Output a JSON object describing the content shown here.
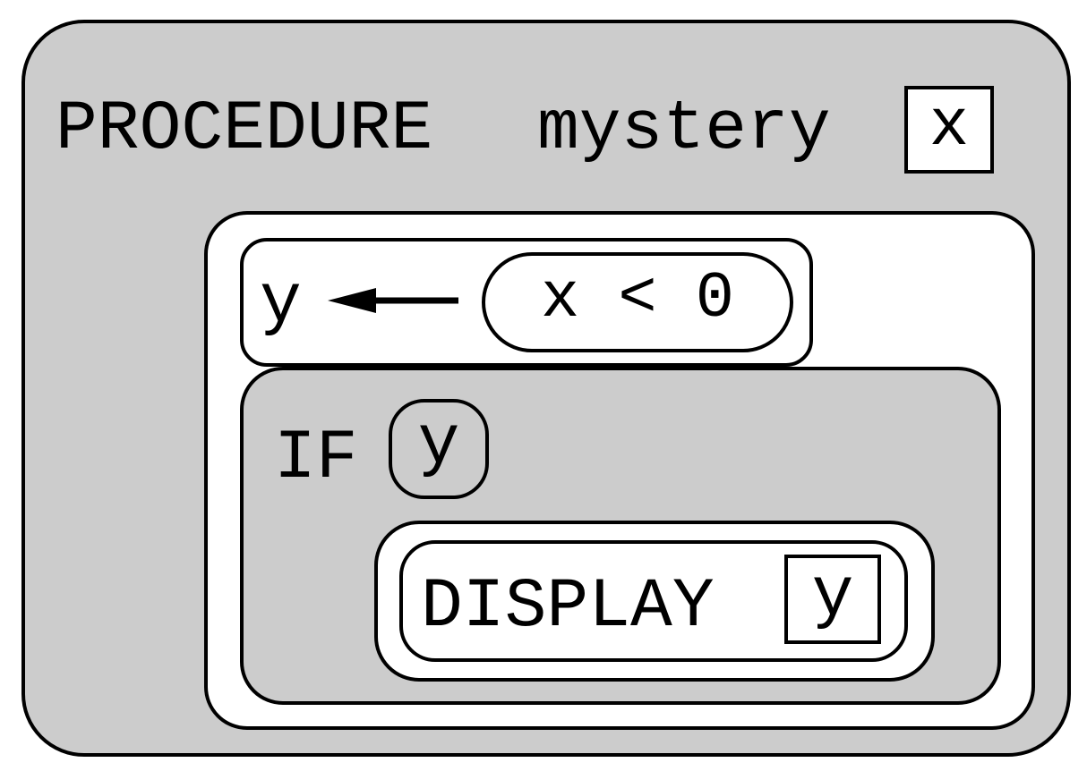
{
  "procedure": {
    "keyword": "PROCEDURE",
    "name": "mystery",
    "param": "x"
  },
  "assignment": {
    "variable": "y",
    "arrow_icon": "left-arrow-icon",
    "expression": "x < 0"
  },
  "if_statement": {
    "keyword": "IF",
    "condition": "y",
    "then": {
      "command": "DISPLAY",
      "argument": "y"
    }
  },
  "colors": {
    "outer_fill": "#cccccc",
    "block_fill": "#ffffff",
    "if_fill": "#cccccc",
    "stroke": "#000000"
  }
}
